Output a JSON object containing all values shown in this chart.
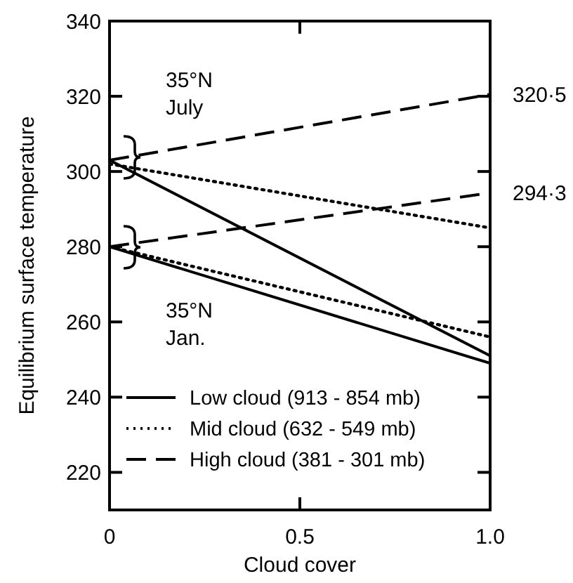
{
  "chart_data": {
    "type": "line",
    "xlabel": "Cloud cover",
    "ylabel": "Equilibrium surface temperature",
    "xlim": [
      0,
      1
    ],
    "xticks": [
      0,
      0.5,
      {
        "value": 1,
        "label": "1.0"
      }
    ],
    "ylim": [
      210,
      340
    ],
    "yticks": [
      220,
      240,
      260,
      280,
      300,
      320,
      340
    ],
    "x": [
      0,
      1
    ],
    "series": [
      {
        "name": "Low cloud (913 - 854 mb)",
        "color": "#000000",
        "line_style": "solid",
        "values": [
          303,
          251
        ]
      },
      {
        "name": "Mid cloud (632 - 549 mb)",
        "color": "#000000",
        "line_style": "dotted",
        "values": [
          302,
          285
        ]
      },
      {
        "name": "High cloud (381 - 301 mb)",
        "color": "#000000",
        "line_style": "dashed",
        "values": [
          303,
          320.5
        ]
      },
      {
        "color": "#000000",
        "line_style": "solid",
        "values": [
          280,
          249
        ]
      },
      {
        "color": "#000000",
        "line_style": "dotted",
        "values": [
          280,
          256
        ]
      },
      {
        "color": "#000000",
        "line_style": "dashed",
        "values": [
          280,
          294.3
        ]
      }
    ],
    "annotations": [
      "35°N July",
      "35°N Jan.",
      {
        "text": "320·5",
        "x": 1,
        "y": 320.5
      },
      {
        "text": "294·3",
        "x": 1,
        "y": 294.3
      }
    ],
    "legend": "bottom",
    "grid": false,
    "marker": "none"
  }
}
